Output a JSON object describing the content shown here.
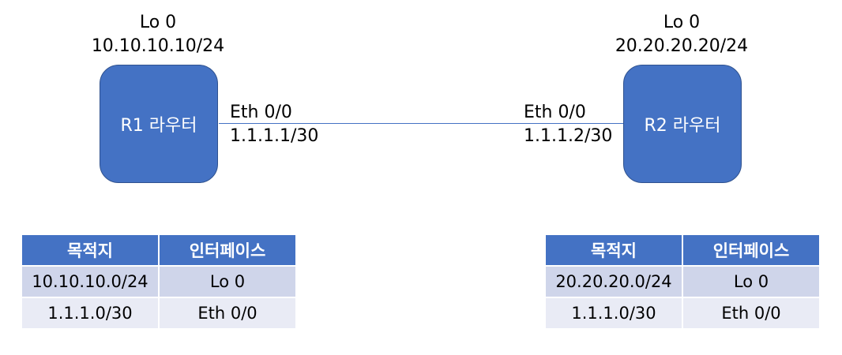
{
  "routers": {
    "r1": {
      "label": "R1 라우터",
      "loopback_name": "Lo 0",
      "loopback_ip": "10.10.10.10/24",
      "interface_name": "Eth 0/0",
      "interface_ip": "1.1.1.1/30"
    },
    "r2": {
      "label": "R2 라우터",
      "loopback_name": "Lo 0",
      "loopback_ip": "20.20.20.20/24",
      "interface_name": "Eth 0/0",
      "interface_ip": "1.1.1.2/30"
    }
  },
  "tables": {
    "r1": {
      "headers": [
        "목적지",
        "인터페이스"
      ],
      "rows": [
        [
          "10.10.10.0/24",
          "Lo 0"
        ],
        [
          "1.1.1.0/30",
          "Eth 0/0"
        ]
      ]
    },
    "r2": {
      "headers": [
        "목적지",
        "인터페이스"
      ],
      "rows": [
        [
          "20.20.20.0/24",
          "Lo 0"
        ],
        [
          "1.1.1.0/30",
          "Eth 0/0"
        ]
      ]
    }
  },
  "colors": {
    "router_fill": "#4472c4",
    "header_fill": "#4472c4",
    "row_odd": "#cfd5ea",
    "row_even": "#e9ebf5"
  }
}
